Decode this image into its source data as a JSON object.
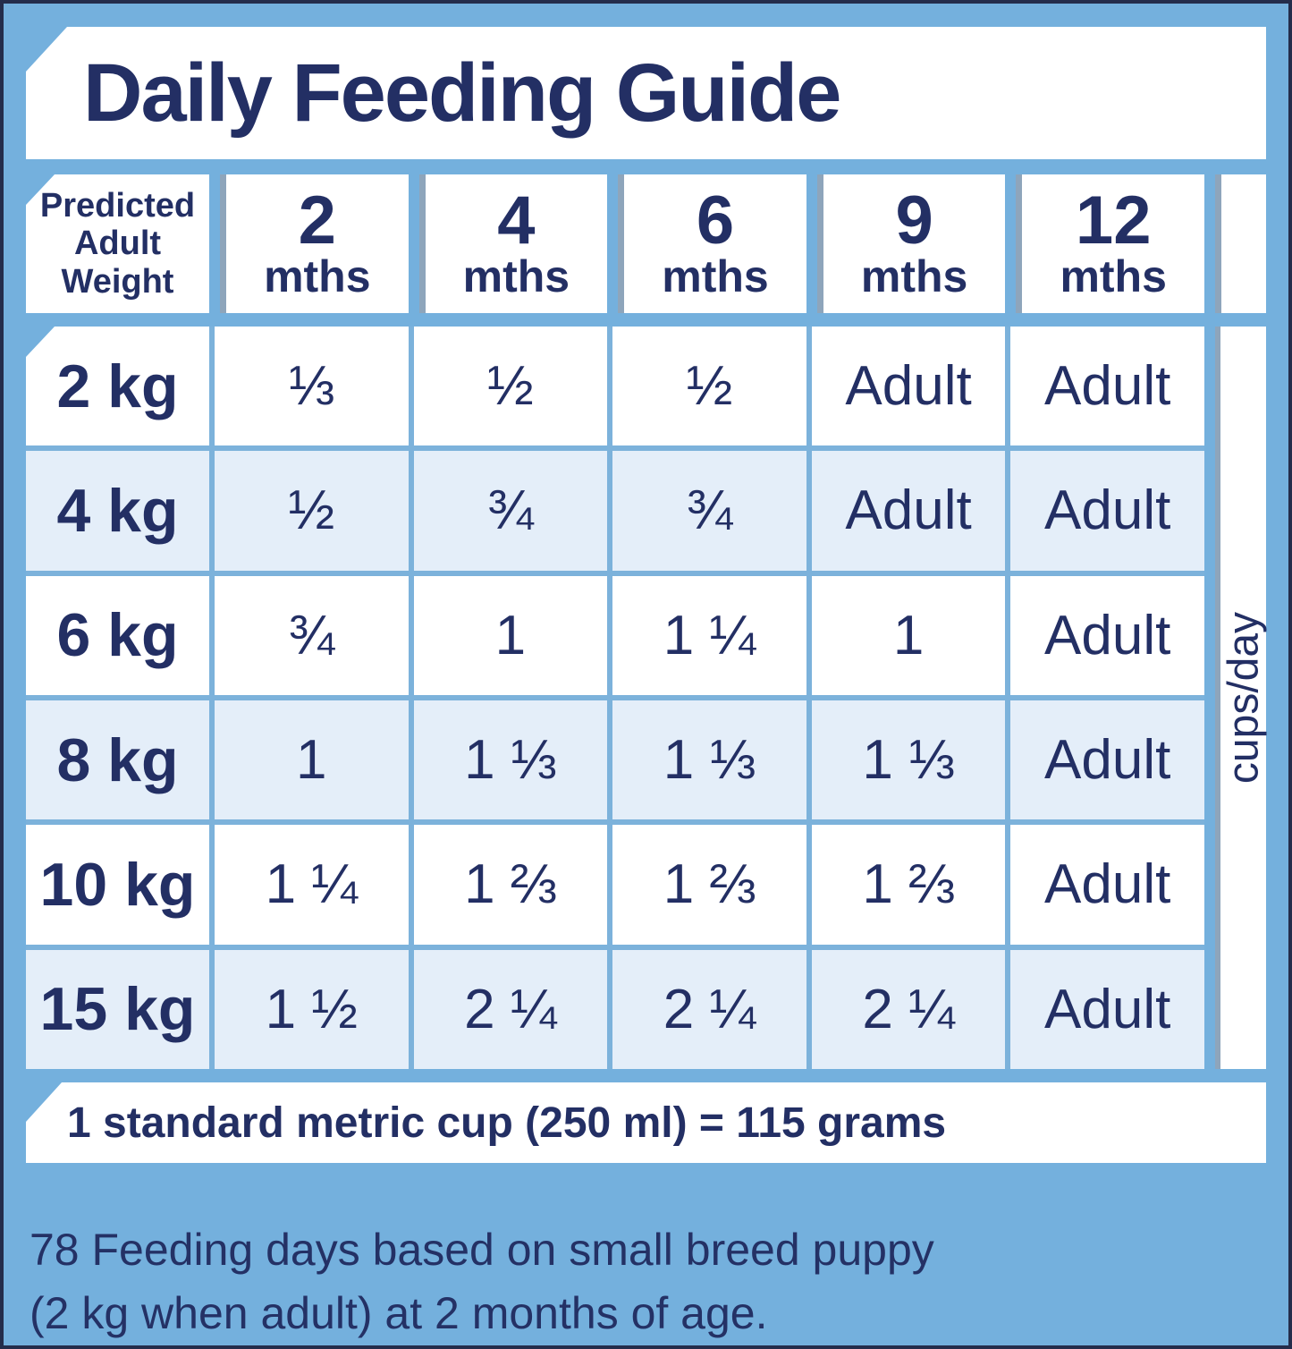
{
  "title": "Daily Feeding Guide",
  "table": {
    "corner_header_lines": [
      "Predicted",
      "Adult",
      "Weight"
    ],
    "columns": [
      {
        "value": "2",
        "unit": "mths"
      },
      {
        "value": "4",
        "unit": "mths"
      },
      {
        "value": "6",
        "unit": "mths"
      },
      {
        "value": "9",
        "unit": "mths"
      },
      {
        "value": "12",
        "unit": "mths"
      }
    ],
    "rows": [
      {
        "weight": "2 kg",
        "values": [
          "⅓",
          "½",
          "½",
          "Adult",
          "Adult"
        ]
      },
      {
        "weight": "4 kg",
        "values": [
          "½",
          "¾",
          "¾",
          "Adult",
          "Adult"
        ]
      },
      {
        "weight": "6 kg",
        "values": [
          "¾",
          "1",
          "1 ¼",
          "1",
          "Adult"
        ]
      },
      {
        "weight": "8 kg",
        "values": [
          "1",
          "1 ⅓",
          "1 ⅓",
          "1 ⅓",
          "Adult"
        ]
      },
      {
        "weight": "10 kg",
        "values": [
          "1 ¼",
          "1 ⅔",
          "1 ⅔",
          "1 ⅔",
          "Adult"
        ]
      },
      {
        "weight": "15 kg",
        "values": [
          "1 ½",
          "2 ¼",
          "2 ¼",
          "2 ¼",
          "Adult"
        ]
      }
    ],
    "unit_label": "cups/day"
  },
  "footnote_cup": "1 standard metric cup (250 ml) = 115 grams",
  "footnote_days_lines": [
    "78 Feeding days based on small breed puppy",
    "(2 kg when adult) at 2 months of age."
  ],
  "colors": {
    "background_blue": "#74b0dd",
    "navy_text": "#232f64",
    "row_alt_blue": "#e4eef9",
    "grid_line_blue": "#7cb2db",
    "cell_shadow_gray": "#8ea5bb",
    "panel_white": "#ffffff",
    "edge_border": "#242d4b"
  }
}
